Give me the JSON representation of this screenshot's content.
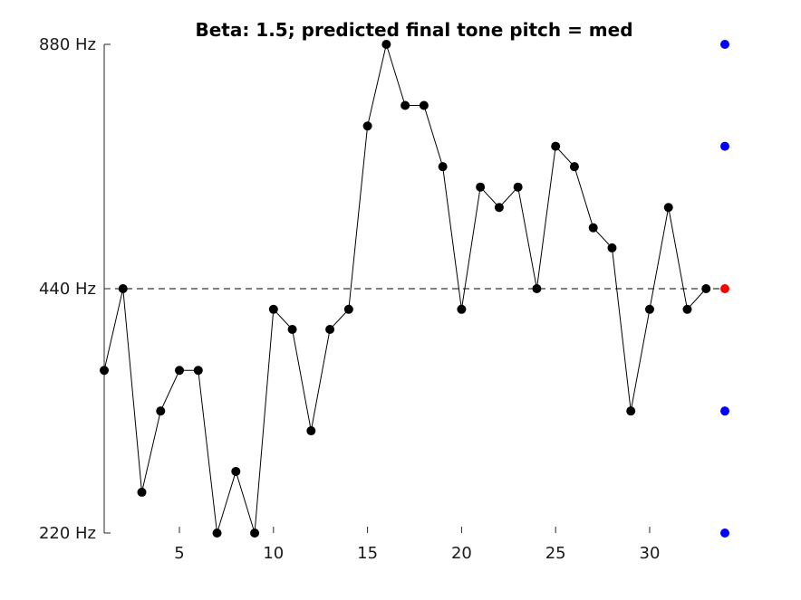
{
  "chart_data": {
    "type": "line",
    "title": "Beta: 1.5; predicted final tone pitch = med",
    "xlabel": "",
    "ylabel": "",
    "xlim": [
      1,
      34
    ],
    "ylim": [
      220,
      880
    ],
    "xticks": [
      5,
      10,
      15,
      20,
      25,
      30
    ],
    "xtick_labels": [
      "5",
      "10",
      "15",
      "20",
      "25",
      "30"
    ],
    "yticks": [
      220,
      440,
      880
    ],
    "ytick_labels": [
      "220 Hz",
      "440 Hz",
      "880 Hz"
    ],
    "y_scale": "log",
    "grid": false,
    "reference_line": {
      "y": 440,
      "style": "dashed",
      "color": "#000000"
    },
    "series": [
      {
        "color": "#000000",
        "marker": "circle",
        "x": [
          1,
          2,
          3,
          4,
          5,
          6,
          7,
          8,
          9,
          10,
          11,
          12,
          13,
          14,
          15,
          16,
          17,
          18,
          19,
          20,
          21,
          22,
          23,
          24,
          25,
          26,
          27,
          28,
          29,
          30,
          31,
          32,
          33
        ],
        "y": [
          349,
          440,
          247,
          311,
          349,
          349,
          220,
          262,
          220,
          415,
          392,
          294,
          392,
          415,
          698,
          880,
          740,
          740,
          622,
          415,
          587,
          554,
          587,
          440,
          659,
          622,
          523,
          494,
          311,
          415,
          554,
          415,
          440
        ]
      }
    ],
    "candidate_points": {
      "x": 34,
      "y": [
        220,
        311,
        440,
        659,
        880
      ],
      "colors": [
        "#0000ff",
        "#0000ff",
        "#ff0000",
        "#0000ff",
        "#0000ff"
      ]
    }
  }
}
